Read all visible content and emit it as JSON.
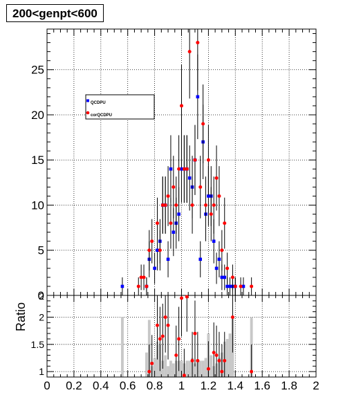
{
  "title": "200<genpt<600",
  "colors": {
    "qcd": "#0000ff",
    "cor": "#ff0000",
    "ratio_hist": "#c8c8c8",
    "grid": "#000000"
  },
  "chart_data": [
    {
      "type": "scatter",
      "xlim": [
        0,
        2
      ],
      "ylim": [
        0,
        29.5
      ],
      "yticks_labels": [
        "0",
        "5",
        "10",
        "15",
        "20",
        "25"
      ],
      "grid": true,
      "legend_position": "top-left",
      "series": [
        {
          "name": "QCDPU",
          "marker": "square",
          "x": [
            0.56,
            0.74,
            0.76,
            0.8,
            0.82,
            0.84,
            0.86,
            0.88,
            0.9,
            0.92,
            0.94,
            0.96,
            0.98,
            1.0,
            1.02,
            1.04,
            1.06,
            1.08,
            1.1,
            1.12,
            1.14,
            1.16,
            1.18,
            1.2,
            1.22,
            1.24,
            1.26,
            1.28,
            1.3,
            1.32,
            1.34,
            1.36,
            1.38,
            1.4,
            1.46
          ],
          "y": [
            1,
            1,
            4,
            3,
            5,
            6,
            10,
            10,
            4,
            14,
            7,
            8,
            9,
            14,
            14,
            14,
            13,
            12,
            15,
            22,
            4,
            17,
            9,
            11,
            11,
            6,
            3,
            4,
            2,
            2,
            1,
            1,
            1,
            1,
            1
          ]
        },
        {
          "name": "corQCDPU",
          "marker": "circle",
          "x": [
            0.68,
            0.7,
            0.72,
            0.74,
            0.76,
            0.78,
            0.82,
            0.84,
            0.86,
            0.88,
            0.9,
            0.92,
            0.94,
            0.96,
            0.98,
            1.0,
            1.02,
            1.04,
            1.06,
            1.08,
            1.1,
            1.12,
            1.14,
            1.16,
            1.18,
            1.2,
            1.22,
            1.24,
            1.26,
            1.28,
            1.3,
            1.32,
            1.34,
            1.38,
            1.4,
            1.44,
            1.52
          ],
          "y": [
            1,
            2,
            2,
            1,
            5,
            6,
            8,
            5,
            10,
            10,
            11,
            8,
            12,
            10,
            14,
            21,
            14,
            14,
            27,
            10,
            15,
            28,
            12,
            19,
            10,
            15,
            9,
            10,
            13,
            11,
            5,
            8,
            3,
            2,
            1,
            1,
            1
          ]
        }
      ]
    },
    {
      "type": "bar",
      "ylabel": "Ratio",
      "ylim": [
        0.9,
        2.4
      ],
      "yticks_labels": [
        "1",
        "1.5",
        "2"
      ],
      "top_tick_label": "2",
      "xlim": [
        0,
        2
      ],
      "xticks_labels": [
        "0",
        "0.2",
        "0.4",
        "0.6",
        "0.8",
        "1",
        "1.2",
        "1.4",
        "1.6",
        "1.8",
        "2"
      ],
      "grid": true,
      "hist": {
        "x": [
          0.56,
          0.74,
          0.76,
          0.78,
          0.8,
          0.82,
          0.84,
          0.86,
          0.88,
          0.9,
          0.92,
          0.94,
          0.96,
          0.98,
          1.0,
          1.02,
          1.04,
          1.06,
          1.08,
          1.1,
          1.12,
          1.14,
          1.16,
          1.18,
          1.2,
          1.22,
          1.24,
          1.26,
          1.28,
          1.3,
          1.32,
          1.34,
          1.36,
          1.38,
          1.52
        ],
        "values": [
          2.0,
          1.35,
          1.95,
          1.1,
          1.25,
          1.55,
          1.5,
          1.2,
          1.3,
          1.1,
          1.2,
          1.15,
          1.2,
          1.2,
          1.2,
          1.15,
          1.2,
          1.2,
          1.25,
          1.15,
          1.2,
          1.2,
          1.2,
          1.25,
          1.7,
          1.3,
          1.1,
          1.15,
          1.25,
          1.35,
          1.55,
          1.6,
          1.7,
          2.0,
          2.0
        ]
      },
      "series": [
        {
          "name": "corQCDPU",
          "marker": "circle",
          "x": [
            0.76,
            0.78,
            0.82,
            0.84,
            0.86,
            0.88,
            0.9,
            0.96,
            0.98,
            1.0,
            1.02,
            1.04,
            1.08,
            1.1,
            1.12,
            1.2,
            1.24,
            1.26,
            1.28,
            1.3,
            1.32,
            1.38,
            1.52
          ],
          "y": [
            1.0,
            1.15,
            1.85,
            1.6,
            1.65,
            2.0,
            1.85,
            1.3,
            1.6,
            2.35,
            0.93,
            2.45,
            1.2,
            1.7,
            1.2,
            1.05,
            1.35,
            1.3,
            1.2,
            1.0,
            1.2,
            2.0,
            1.0
          ]
        }
      ]
    }
  ]
}
